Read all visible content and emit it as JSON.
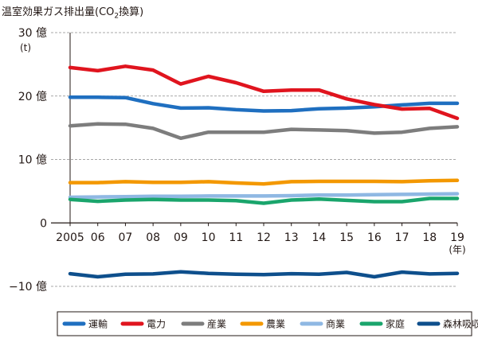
{
  "title": {
    "main": "温室効果ガス排出量",
    "paren_open": "(CO",
    "subscript": "2",
    "paren_close": "換算)"
  },
  "chart_data": {
    "type": "line",
    "title": "温室効果ガス排出量(CO2換算)",
    "y_unit": "(t)",
    "x_unit": "(年)",
    "x_tick_labels": [
      "2005",
      "06",
      "07",
      "08",
      "09",
      "10",
      "11",
      "12",
      "13",
      "14",
      "15",
      "16",
      "17",
      "18",
      "19"
    ],
    "x": [
      2005,
      2006,
      2007,
      2008,
      2009,
      2010,
      2011,
      2012,
      2013,
      2014,
      2015,
      2016,
      2017,
      2018,
      2019
    ],
    "xlim": [
      2005,
      2019
    ],
    "ylim": [
      -1000000000,
      3000000000
    ],
    "y_ticks": [
      {
        "value": 3000000000,
        "label": "30 億"
      },
      {
        "value": 2000000000,
        "label": "20 億"
      },
      {
        "value": 1000000000,
        "label": "10 億"
      },
      {
        "value": 0,
        "label": "0"
      },
      {
        "value": -1000000000,
        "label": "−10 億"
      }
    ],
    "grid": "horizontal dashed",
    "legend_position": "bottom",
    "series": [
      {
        "name": "運輸",
        "color": "#1f6fc0",
        "values": [
          1980000000,
          1980000000,
          1975000000,
          1880000000,
          1810000000,
          1815000000,
          1785000000,
          1765000000,
          1770000000,
          1800000000,
          1810000000,
          1830000000,
          1860000000,
          1885000000,
          1885000000
        ]
      },
      {
        "name": "電力",
        "color": "#e0141e",
        "values": [
          2450000000,
          2400000000,
          2470000000,
          2410000000,
          2190000000,
          2310000000,
          2210000000,
          2075000000,
          2095000000,
          2095000000,
          1955000000,
          1865000000,
          1795000000,
          1805000000,
          1650000000
        ]
      },
      {
        "name": "産業",
        "color": "#7d7d7d",
        "values": [
          1530000000,
          1560000000,
          1555000000,
          1490000000,
          1335000000,
          1430000000,
          1430000000,
          1430000000,
          1475000000,
          1465000000,
          1455000000,
          1415000000,
          1430000000,
          1490000000,
          1515000000
        ]
      },
      {
        "name": "農業",
        "color": "#f39800",
        "values": [
          635000000,
          635000000,
          650000000,
          640000000,
          640000000,
          650000000,
          630000000,
          615000000,
          650000000,
          655000000,
          655000000,
          655000000,
          650000000,
          665000000,
          670000000
        ]
      },
      {
        "name": "商業",
        "color": "#8fb8e3",
        "values": [
          405000000,
          410000000,
          415000000,
          420000000,
          420000000,
          425000000,
          425000000,
          425000000,
          430000000,
          440000000,
          440000000,
          445000000,
          450000000,
          455000000,
          460000000
        ]
      },
      {
        "name": "家庭",
        "color": "#1aa56c",
        "values": [
          370000000,
          340000000,
          360000000,
          370000000,
          360000000,
          360000000,
          350000000,
          310000000,
          360000000,
          375000000,
          355000000,
          335000000,
          335000000,
          385000000,
          385000000
        ]
      },
      {
        "name": "森林吸収",
        "color": "#0e4f8c",
        "values": [
          -800000000,
          -850000000,
          -810000000,
          -805000000,
          -770000000,
          -795000000,
          -810000000,
          -815000000,
          -800000000,
          -810000000,
          -780000000,
          -850000000,
          -775000000,
          -805000000,
          -795000000
        ]
      }
    ]
  }
}
